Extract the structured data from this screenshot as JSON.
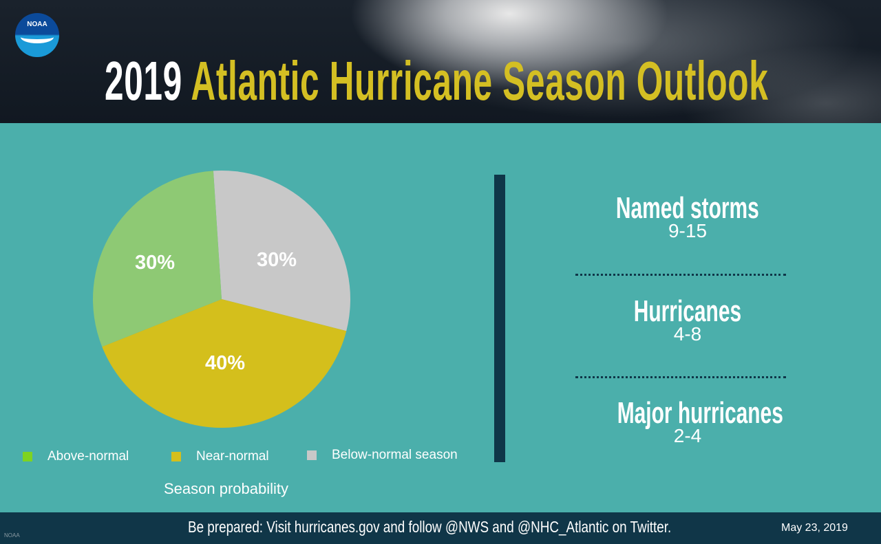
{
  "header": {
    "logo_text": "NOAA",
    "title_year": "2019",
    "title_rest": "Atlantic Hurricane Season Outlook"
  },
  "chart_data": {
    "type": "pie",
    "title": "",
    "caption": "Season probability",
    "slices": [
      {
        "name": "Below-normal season",
        "value": 30,
        "label": "30%",
        "color": "#c8c8c8"
      },
      {
        "name": "Near-normal",
        "value": 40,
        "label": "40%",
        "color": "#d4bf1c"
      },
      {
        "name": "Above-normal",
        "value": 30,
        "label": "30%",
        "color": "#8ec974"
      }
    ],
    "legend": [
      {
        "label": "Above-normal",
        "color": "#7ed321"
      },
      {
        "label": "Near-normal",
        "color": "#d4bf1c"
      },
      {
        "label": "Below-normal season",
        "color": "#c8c8c8"
      }
    ],
    "legend_position": "bottom"
  },
  "stats": [
    {
      "label": "Named storms",
      "value": "9-15"
    },
    {
      "label": "Hurricanes",
      "value": "4-8"
    },
    {
      "label": "Major hurricanes",
      "value": "2-4"
    }
  ],
  "footer": {
    "message": "Be prepared: Visit hurricanes.gov and follow @NWS and @NHC_Atlantic on Twitter.",
    "date": "May 23, 2019",
    "credit": "NOAA"
  }
}
